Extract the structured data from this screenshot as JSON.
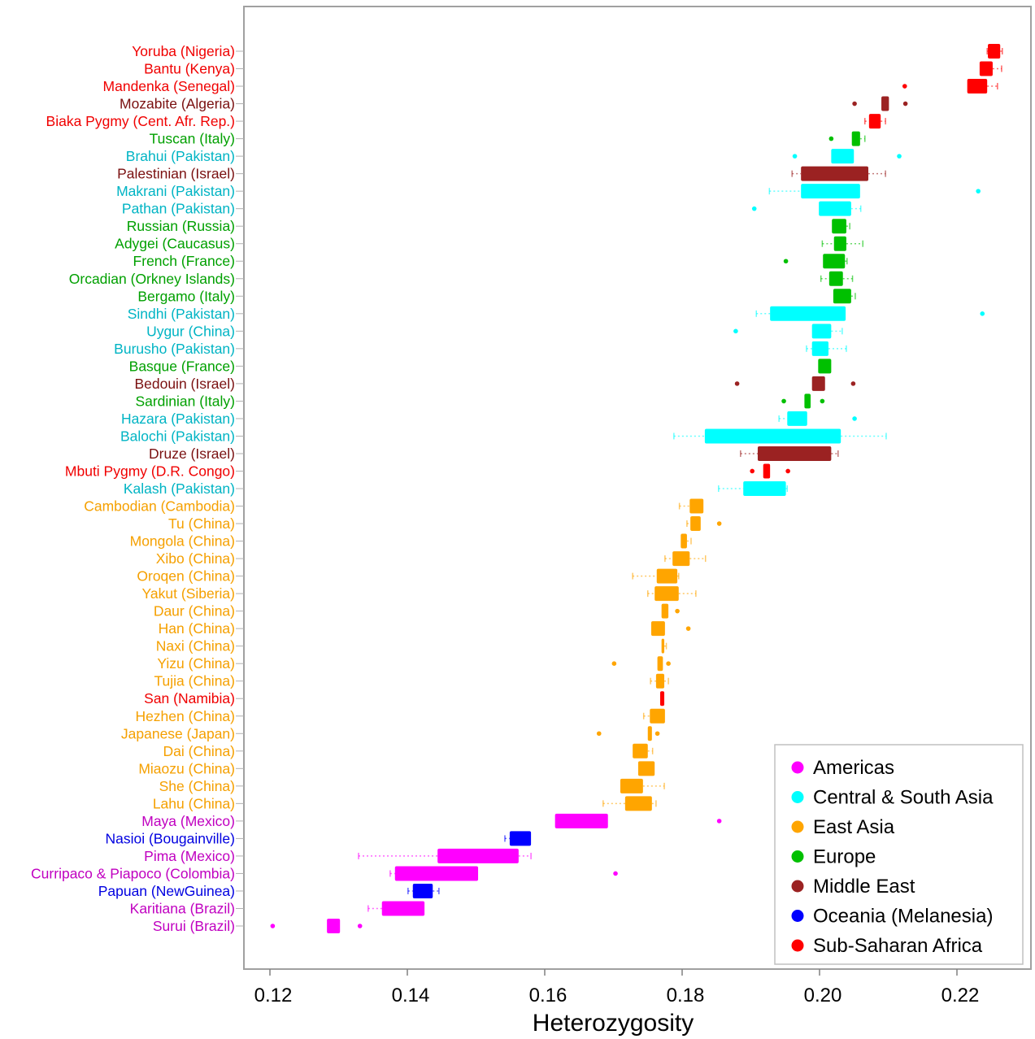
{
  "chart_data": {
    "type": "boxplot",
    "orientation": "horizontal",
    "xlabel": "Heterozygosity",
    "xlim": [
      0.116,
      0.2305
    ],
    "xticks": [
      0.12,
      0.14,
      0.16,
      0.18,
      0.2,
      0.22
    ],
    "xtick_labels": [
      "0.12",
      "0.14",
      "0.16",
      "0.18",
      "0.20",
      "0.22"
    ],
    "grid": false,
    "legend_position": "bottom-right",
    "legend": [
      {
        "name": "Americas",
        "color": "#ff00ff",
        "label_color": "#c000c0"
      },
      {
        "name": "Central & South Asia",
        "color": "#00ffff",
        "label_color": "#00b4c4"
      },
      {
        "name": "East Asia",
        "color": "#ffa500",
        "label_color": "#f5a000"
      },
      {
        "name": "Europe",
        "color": "#00c000",
        "label_color": "#00a000"
      },
      {
        "name": "Middle East",
        "color": "#9b2222",
        "label_color": "#7a1010"
      },
      {
        "name": "Oceania (Melanesia)",
        "color": "#0000ff",
        "label_color": "#0000e0"
      },
      {
        "name": "Sub-Saharan Africa",
        "color": "#ff0000",
        "label_color": "#f00000"
      }
    ],
    "series": [
      {
        "name": "Yoruba (Nigeria)",
        "region": 6,
        "whisker_low": 0.2244,
        "q1": 0.2245,
        "q3": 0.2263,
        "whisker_high": 0.2266,
        "outliers": []
      },
      {
        "name": "Bantu (Kenya)",
        "region": 6,
        "whisker_low": 0.2233,
        "q1": 0.2233,
        "q3": 0.2252,
        "whisker_high": 0.2265,
        "outliers": []
      },
      {
        "name": "Mandenka (Senegal)",
        "region": 6,
        "whisker_low": 0.2215,
        "q1": 0.2215,
        "q3": 0.2244,
        "whisker_high": 0.2259,
        "outliers": [
          0.2124
        ]
      },
      {
        "name": "Mozabite (Algeria)",
        "region": 4,
        "whisker_low": 0.209,
        "q1": 0.209,
        "q3": 0.2101,
        "whisker_high": 0.2101,
        "outliers": [
          0.2051,
          0.2125
        ]
      },
      {
        "name": "Biaka Pygmy (Cent. Afr. Rep.)",
        "region": 6,
        "whisker_low": 0.2066,
        "q1": 0.2072,
        "q3": 0.2089,
        "whisker_high": 0.2096,
        "outliers": []
      },
      {
        "name": "Tuscan (Italy)",
        "region": 3,
        "whisker_low": 0.2047,
        "q1": 0.2047,
        "q3": 0.2059,
        "whisker_high": 0.2066,
        "outliers": [
          0.2017
        ]
      },
      {
        "name": "Brahui (Pakistan)",
        "region": 1,
        "whisker_low": 0.2017,
        "q1": 0.2017,
        "q3": 0.205,
        "whisker_high": 0.205,
        "outliers": [
          0.1964,
          0.2116
        ]
      },
      {
        "name": "Palestinian (Israel)",
        "region": 4,
        "whisker_low": 0.196,
        "q1": 0.1973,
        "q3": 0.2071,
        "whisker_high": 0.2096,
        "outliers": []
      },
      {
        "name": "Makrani (Pakistan)",
        "region": 1,
        "whisker_low": 0.1927,
        "q1": 0.1973,
        "q3": 0.2059,
        "whisker_high": 0.2059,
        "outliers": [
          0.2231
        ]
      },
      {
        "name": "Pathan (Pakistan)",
        "region": 1,
        "whisker_low": 0.1999,
        "q1": 0.1999,
        "q3": 0.2046,
        "whisker_high": 0.206,
        "outliers": [
          0.1905
        ]
      },
      {
        "name": "Russian (Russia)",
        "region": 3,
        "whisker_low": 0.2018,
        "q1": 0.2018,
        "q3": 0.2039,
        "whisker_high": 0.2044,
        "outliers": []
      },
      {
        "name": "Adygei (Caucasus)",
        "region": 3,
        "whisker_low": 0.2004,
        "q1": 0.2021,
        "q3": 0.2039,
        "whisker_high": 0.2063,
        "outliers": []
      },
      {
        "name": "French (France)",
        "region": 3,
        "whisker_low": 0.2005,
        "q1": 0.2005,
        "q3": 0.2037,
        "whisker_high": 0.204,
        "outliers": [
          0.1951
        ]
      },
      {
        "name": "Orcadian (Orkney Islands)",
        "region": 3,
        "whisker_low": 0.2002,
        "q1": 0.2014,
        "q3": 0.2034,
        "whisker_high": 0.2048,
        "outliers": []
      },
      {
        "name": "Bergamo (Italy)",
        "region": 3,
        "whisker_low": 0.202,
        "q1": 0.202,
        "q3": 0.2046,
        "whisker_high": 0.2052,
        "outliers": []
      },
      {
        "name": "Sindhi (Pakistan)",
        "region": 1,
        "whisker_low": 0.1908,
        "q1": 0.1928,
        "q3": 0.2038,
        "whisker_high": 0.2038,
        "outliers": [
          0.2237
        ]
      },
      {
        "name": "Uygur (China)",
        "region": 1,
        "whisker_low": 0.1989,
        "q1": 0.1989,
        "q3": 0.2017,
        "whisker_high": 0.2033,
        "outliers": [
          0.1878
        ]
      },
      {
        "name": "Burusho (Pakistan)",
        "region": 1,
        "whisker_low": 0.1981,
        "q1": 0.1989,
        "q3": 0.2013,
        "whisker_high": 0.2039,
        "outliers": []
      },
      {
        "name": "Basque (France)",
        "region": 3,
        "whisker_low": 0.1998,
        "q1": 0.1998,
        "q3": 0.2017,
        "whisker_high": 0.2017,
        "outliers": []
      },
      {
        "name": "Bedouin (Israel)",
        "region": 4,
        "whisker_low": 0.1989,
        "q1": 0.1989,
        "q3": 0.2008,
        "whisker_high": 0.2008,
        "outliers": [
          0.188,
          0.2049
        ]
      },
      {
        "name": "Sardinian (Italy)",
        "region": 3,
        "whisker_low": 0.1978,
        "q1": 0.1978,
        "q3": 0.1987,
        "whisker_high": 0.1987,
        "outliers": [
          0.1948,
          0.2004
        ]
      },
      {
        "name": "Hazara (Pakistan)",
        "region": 1,
        "whisker_low": 0.1941,
        "q1": 0.1953,
        "q3": 0.1982,
        "whisker_high": 0.1982,
        "outliers": [
          0.2051
        ]
      },
      {
        "name": "Balochi (Pakistan)",
        "region": 1,
        "whisker_low": 0.1788,
        "q1": 0.1833,
        "q3": 0.2031,
        "whisker_high": 0.2097,
        "outliers": []
      },
      {
        "name": "Druze (Israel)",
        "region": 4,
        "whisker_low": 0.1885,
        "q1": 0.191,
        "q3": 0.2017,
        "whisker_high": 0.2027,
        "outliers": []
      },
      {
        "name": "Mbuti Pygmy (D.R. Congo)",
        "region": 6,
        "whisker_low": 0.1918,
        "q1": 0.1918,
        "q3": 0.1928,
        "whisker_high": 0.1928,
        "outliers": [
          0.1902,
          0.1954
        ]
      },
      {
        "name": "Kalash (Pakistan)",
        "region": 1,
        "whisker_low": 0.1853,
        "q1": 0.1889,
        "q3": 0.1951,
        "whisker_high": 0.1953,
        "outliers": []
      },
      {
        "name": "Cambodian (Cambodia)",
        "region": 2,
        "whisker_low": 0.1796,
        "q1": 0.1811,
        "q3": 0.1831,
        "whisker_high": 0.1831,
        "outliers": []
      },
      {
        "name": "Tu (China)",
        "region": 2,
        "whisker_low": 0.1807,
        "q1": 0.1812,
        "q3": 0.1827,
        "whisker_high": 0.1827,
        "outliers": [
          0.1854
        ]
      },
      {
        "name": "Mongola (China)",
        "region": 2,
        "whisker_low": 0.1798,
        "q1": 0.1798,
        "q3": 0.1807,
        "whisker_high": 0.1813,
        "outliers": []
      },
      {
        "name": "Xibo (China)",
        "region": 2,
        "whisker_low": 0.1775,
        "q1": 0.1786,
        "q3": 0.1811,
        "whisker_high": 0.1834,
        "outliers": []
      },
      {
        "name": "Oroqen (China)",
        "region": 2,
        "whisker_low": 0.1728,
        "q1": 0.1763,
        "q3": 0.1793,
        "whisker_high": 0.1795,
        "outliers": []
      },
      {
        "name": "Yakut (Siberia)",
        "region": 2,
        "whisker_low": 0.175,
        "q1": 0.176,
        "q3": 0.1795,
        "whisker_high": 0.182,
        "outliers": []
      },
      {
        "name": "Daur (China)",
        "region": 2,
        "whisker_low": 0.177,
        "q1": 0.177,
        "q3": 0.178,
        "whisker_high": 0.178,
        "outliers": [
          0.1793
        ]
      },
      {
        "name": "Han (China)",
        "region": 2,
        "whisker_low": 0.1755,
        "q1": 0.1755,
        "q3": 0.1775,
        "whisker_high": 0.1775,
        "outliers": [
          0.1809
        ]
      },
      {
        "name": "Naxi (China)",
        "region": 2,
        "whisker_low": 0.177,
        "q1": 0.177,
        "q3": 0.1774,
        "whisker_high": 0.1777,
        "outliers": []
      },
      {
        "name": "Yizu (China)",
        "region": 2,
        "whisker_low": 0.1764,
        "q1": 0.1764,
        "q3": 0.1772,
        "whisker_high": 0.1772,
        "outliers": [
          0.1701,
          0.178
        ]
      },
      {
        "name": "Tujia (China)",
        "region": 2,
        "whisker_low": 0.1754,
        "q1": 0.1762,
        "q3": 0.1774,
        "whisker_high": 0.178,
        "outliers": []
      },
      {
        "name": "San (Namibia)",
        "region": 6,
        "whisker_low": 0.1768,
        "q1": 0.1768,
        "q3": 0.1774,
        "whisker_high": 0.1774,
        "outliers": []
      },
      {
        "name": "Hezhen (China)",
        "region": 2,
        "whisker_low": 0.1744,
        "q1": 0.1753,
        "q3": 0.1775,
        "whisker_high": 0.1775,
        "outliers": []
      },
      {
        "name": "Japanese (Japan)",
        "region": 2,
        "whisker_low": 0.175,
        "q1": 0.175,
        "q3": 0.1756,
        "whisker_high": 0.1756,
        "outliers": [
          0.1679,
          0.1764
        ]
      },
      {
        "name": "Dai (China)",
        "region": 2,
        "whisker_low": 0.1728,
        "q1": 0.1728,
        "q3": 0.175,
        "whisker_high": 0.1757,
        "outliers": []
      },
      {
        "name": "Miaozu (China)",
        "region": 2,
        "whisker_low": 0.1736,
        "q1": 0.1736,
        "q3": 0.176,
        "whisker_high": 0.176,
        "outliers": []
      },
      {
        "name": "She (China)",
        "region": 2,
        "whisker_low": 0.171,
        "q1": 0.171,
        "q3": 0.1743,
        "whisker_high": 0.1774,
        "outliers": []
      },
      {
        "name": "Lahu (China)",
        "region": 2,
        "whisker_low": 0.1685,
        "q1": 0.1717,
        "q3": 0.1756,
        "whisker_high": 0.1762,
        "outliers": []
      },
      {
        "name": "Maya (Mexico)",
        "region": 0,
        "whisker_low": 0.1615,
        "q1": 0.1615,
        "q3": 0.1692,
        "whisker_high": 0.1692,
        "outliers": [
          0.1854
        ]
      },
      {
        "name": "Nasioi (Bougainville)",
        "region": 5,
        "whisker_low": 0.1542,
        "q1": 0.1549,
        "q3": 0.158,
        "whisker_high": 0.158,
        "outliers": []
      },
      {
        "name": "Pima (Mexico)",
        "region": 0,
        "whisker_low": 0.1329,
        "q1": 0.1444,
        "q3": 0.1562,
        "whisker_high": 0.158,
        "outliers": []
      },
      {
        "name": "Curripaco & Piapoco (Colombia)",
        "region": 0,
        "whisker_low": 0.1375,
        "q1": 0.1382,
        "q3": 0.1503,
        "whisker_high": 0.1503,
        "outliers": [
          0.1703
        ]
      },
      {
        "name": "Papuan (NewGuinea)",
        "region": 5,
        "whisker_low": 0.1401,
        "q1": 0.1408,
        "q3": 0.1437,
        "whisker_high": 0.1446,
        "outliers": []
      },
      {
        "name": "Karitiana (Brazil)",
        "region": 0,
        "whisker_low": 0.1343,
        "q1": 0.1363,
        "q3": 0.1425,
        "whisker_high": 0.1425,
        "outliers": []
      },
      {
        "name": "Surui (Brazil)",
        "region": 0,
        "whisker_low": 0.1283,
        "q1": 0.1283,
        "q3": 0.1302,
        "whisker_high": 0.1302,
        "outliers": [
          0.1204,
          0.1331
        ]
      }
    ]
  }
}
